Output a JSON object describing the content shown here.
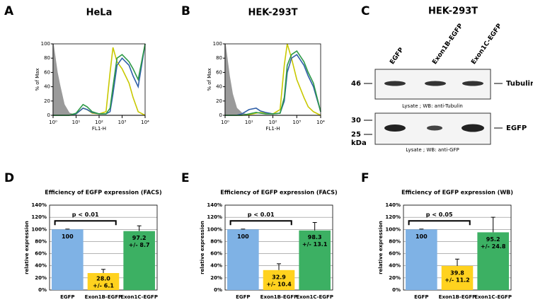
{
  "panel_labels": [
    "A",
    "B",
    "C",
    "D",
    "E",
    "F"
  ],
  "chart_data": [
    {
      "type": "line",
      "title": "HeLa",
      "ylabel": "% of Max",
      "xlabel": "FL1-H",
      "log_x": true,
      "x": [
        1,
        1.5,
        2,
        3,
        5,
        10,
        20,
        30,
        50,
        100,
        200,
        300,
        400,
        600,
        1000,
        2000,
        3000,
        5000,
        10000
      ],
      "xlim": [
        1,
        10000
      ],
      "xticks": [
        {
          "value": 1,
          "label": "10⁰"
        },
        {
          "value": 10,
          "label": "10¹"
        },
        {
          "value": 100,
          "label": "10²"
        },
        {
          "value": 1000,
          "label": "10³"
        },
        {
          "value": 10000,
          "label": "10⁴"
        }
      ],
      "ylim": [
        0,
        100
      ],
      "yticks": [
        0,
        20,
        40,
        60,
        80,
        100
      ],
      "series": [
        {
          "color": "#9a9a9a",
          "fill": true,
          "values": [
            100,
            60,
            40,
            15,
            3,
            0,
            0,
            0,
            0,
            0,
            0,
            0,
            0,
            0,
            0,
            0,
            0,
            0,
            0
          ]
        },
        {
          "color": "#c8c800",
          "values": [
            0,
            0,
            0,
            0,
            0,
            2,
            10,
            8,
            3,
            2,
            5,
            60,
            95,
            75,
            65,
            45,
            25,
            5,
            0
          ]
        },
        {
          "color": "#2f5fa8",
          "values": [
            0,
            0,
            0,
            0,
            0,
            2,
            10,
            8,
            4,
            2,
            2,
            5,
            30,
            70,
            80,
            70,
            55,
            40,
            100
          ]
        },
        {
          "color": "#2e9a47",
          "values": [
            0,
            0,
            0,
            0,
            0,
            3,
            15,
            12,
            5,
            2,
            2,
            10,
            40,
            80,
            85,
            75,
            65,
            50,
            100
          ]
        }
      ]
    },
    {
      "type": "line",
      "title": "HEK-293T",
      "ylabel": "% of Max",
      "xlabel": "FL1-H",
      "log_x": true,
      "x": [
        1,
        1.5,
        2,
        3,
        5,
        10,
        20,
        30,
        50,
        100,
        200,
        300,
        400,
        600,
        1000,
        2000,
        3000,
        5000,
        10000
      ],
      "xlim": [
        1,
        10000
      ],
      "xticks": [
        {
          "value": 1,
          "label": "10⁰"
        },
        {
          "value": 10,
          "label": "10¹"
        },
        {
          "value": 100,
          "label": "10²"
        },
        {
          "value": 1000,
          "label": "10³"
        },
        {
          "value": 10000,
          "label": "10⁴"
        }
      ],
      "ylim": [
        0,
        100
      ],
      "yticks": [
        0,
        20,
        40,
        60,
        80,
        100
      ],
      "series": [
        {
          "color": "#9a9a9a",
          "fill": true,
          "values": [
            100,
            55,
            30,
            10,
            3,
            0,
            0,
            0,
            0,
            0,
            0,
            0,
            0,
            0,
            0,
            0,
            0,
            0,
            0
          ]
        },
        {
          "color": "#c8c800",
          "values": [
            0,
            0,
            0,
            0,
            0,
            1,
            3,
            4,
            3,
            2,
            8,
            70,
            100,
            80,
            50,
            25,
            12,
            5,
            0
          ]
        },
        {
          "color": "#2f5fa8",
          "values": [
            0,
            0,
            0,
            0,
            2,
            8,
            10,
            6,
            4,
            2,
            3,
            20,
            60,
            80,
            85,
            70,
            55,
            40,
            5
          ]
        },
        {
          "color": "#2e9a47",
          "values": [
            0,
            0,
            0,
            0,
            0,
            2,
            4,
            3,
            2,
            2,
            3,
            25,
            70,
            85,
            90,
            75,
            60,
            45,
            5
          ]
        }
      ]
    },
    {
      "type": "bar",
      "title": "Efficiency of EGFP expression (FACS)",
      "ylabel": "relative expression",
      "categories": [
        "EGFP",
        "Exon1B-EGFP",
        "Exon1C-EGFP"
      ],
      "colors": [
        "#7fb2e5",
        "#ffd21f",
        "#3cb063"
      ],
      "values": [
        100,
        28.0,
        97.2
      ],
      "value_labels": [
        "100",
        "28.0",
        "97.2"
      ],
      "errors": [
        0.5,
        6.1,
        8.7
      ],
      "error_labels": [
        null,
        "+/- 6.1",
        "+/- 8.7"
      ],
      "annotation": "p < 0.01",
      "ylim": [
        0,
        140
      ],
      "yticks": [
        {
          "value": 0,
          "label": "0%"
        },
        {
          "value": 20,
          "label": "20%"
        },
        {
          "value": 40,
          "label": "40%"
        },
        {
          "value": 60,
          "label": "60%"
        },
        {
          "value": 80,
          "label": "80%"
        },
        {
          "value": 100,
          "label": "100%"
        },
        {
          "value": 120,
          "label": "120%"
        },
        {
          "value": 140,
          "label": "140%"
        }
      ],
      "grid": true
    },
    {
      "type": "bar",
      "title": "Efficiency of EGFP expression (FACS)",
      "ylabel": "relative expression",
      "categories": [
        "EGFP",
        "Exon1B-EGFP",
        "Exon1C-EGFP"
      ],
      "colors": [
        "#7fb2e5",
        "#ffd21f",
        "#3cb063"
      ],
      "values": [
        100,
        32.9,
        98.3
      ],
      "value_labels": [
        "100",
        "32.9",
        "98.3"
      ],
      "errors": [
        0.5,
        10.4,
        13.1
      ],
      "error_labels": [
        null,
        "+/- 10.4",
        "+/- 13.1"
      ],
      "annotation": "p < 0.01",
      "ylim": [
        0,
        140
      ],
      "yticks": [
        {
          "value": 0,
          "label": "0%"
        },
        {
          "value": 20,
          "label": "20%"
        },
        {
          "value": 40,
          "label": "40%"
        },
        {
          "value": 60,
          "label": "60%"
        },
        {
          "value": 80,
          "label": "80%"
        },
        {
          "value": 100,
          "label": "100%"
        },
        {
          "value": 120,
          "label": "120%"
        },
        {
          "value": 140,
          "label": "140%"
        }
      ],
      "grid": true
    },
    {
      "type": "bar",
      "title": "Efficiency of EGFP expression (WB)",
      "ylabel": "relative expression",
      "categories": [
        "EGFP",
        "Exon1B-EGFP",
        "Exon1C-EGFP"
      ],
      "colors": [
        "#7fb2e5",
        "#ffd21f",
        "#3cb063"
      ],
      "values": [
        100,
        39.8,
        95.2
      ],
      "value_labels": [
        "100",
        "39.8",
        "95.2"
      ],
      "errors": [
        0.5,
        11.2,
        24.8
      ],
      "error_labels": [
        null,
        "+/- 11.2",
        "+/- 24.8"
      ],
      "annotation": "p < 0.05",
      "ylim": [
        0,
        140
      ],
      "yticks": [
        {
          "value": 0,
          "label": "0%"
        },
        {
          "value": 20,
          "label": "20%"
        },
        {
          "value": 40,
          "label": "40%"
        },
        {
          "value": 60,
          "label": "60%"
        },
        {
          "value": 80,
          "label": "80%"
        },
        {
          "value": 100,
          "label": "100%"
        },
        {
          "value": 120,
          "label": "120%"
        },
        {
          "value": 140,
          "label": "140%"
        }
      ],
      "grid": true
    }
  ],
  "blot": {
    "title": "HEK-293T",
    "lanes": [
      "EGFP",
      "Exon1B-EGFP",
      "Exon1C-EGFP"
    ],
    "unit": "kDa",
    "panels": [
      {
        "markers": [
          "46"
        ],
        "target": "Tubulin",
        "caption": "Lysate ; WB: anti-Tubulin"
      },
      {
        "markers": [
          "30",
          "25"
        ],
        "target": "EGFP",
        "caption": "Lysate ; WB: anti-GFP"
      }
    ]
  }
}
